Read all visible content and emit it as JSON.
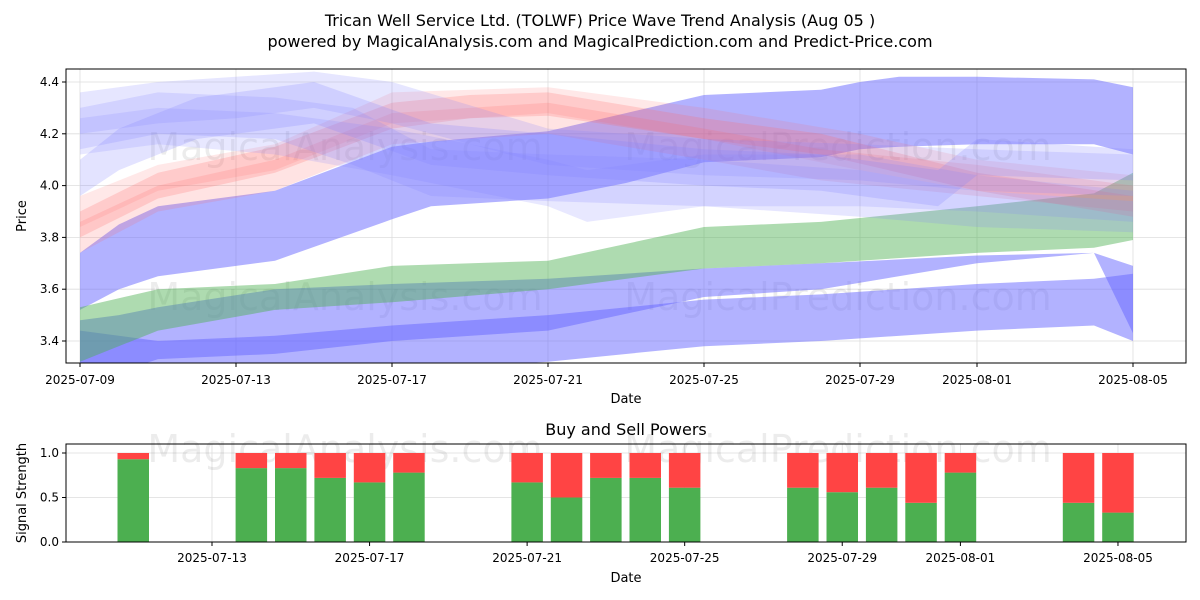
{
  "chart_data": [
    {
      "type": "area",
      "title": "Trican Well Service Ltd. (TOLWF) Price Wave Trend Analysis (Aug 05 )",
      "subtitle": "powered by MagicalAnalysis.com and MagicalPrediction.com and Predict-Price.com",
      "xlabel": "Date",
      "ylabel": "Price",
      "xlim": [
        "2025-07-09",
        "2025-08-06"
      ],
      "ylim": [
        3.32,
        4.46
      ],
      "x_ticks": [
        "2025-07-09",
        "2025-07-13",
        "2025-07-17",
        "2025-07-21",
        "2025-07-25",
        "2025-07-29",
        "2025-08-01",
        "2025-08-05"
      ],
      "y_ticks": [
        3.4,
        3.6,
        3.8,
        4.0,
        4.2,
        4.4
      ],
      "grid": true,
      "watermarks": [
        "MagicalAnalysis.com",
        "MagicalPrediction.com"
      ],
      "series": [
        {
          "name": "blue band upper",
          "color": "#6666ff",
          "opacity": 0.5,
          "x": [
            "2025-07-09",
            "2025-07-10",
            "2025-07-11",
            "2025-07-14",
            "2025-07-17",
            "2025-07-18",
            "2025-07-21",
            "2025-07-23",
            "2025-07-25",
            "2025-07-28",
            "2025-07-29",
            "2025-07-30",
            "2025-08-01",
            "2025-08-04",
            "2025-08-05"
          ],
          "upper": [
            3.74,
            3.85,
            3.92,
            3.98,
            4.15,
            4.17,
            4.21,
            4.28,
            4.35,
            4.37,
            4.4,
            4.42,
            4.42,
            4.41,
            4.38
          ],
          "lower": [
            3.52,
            3.6,
            3.65,
            3.71,
            3.87,
            3.92,
            3.95,
            4.01,
            4.09,
            4.11,
            4.14,
            4.15,
            4.16,
            4.16,
            4.12
          ]
        },
        {
          "name": "blue band middle",
          "color": "#6666ff",
          "opacity": 0.5,
          "x": [
            "2025-07-09",
            "2025-07-10",
            "2025-07-11",
            "2025-07-14",
            "2025-07-17",
            "2025-07-21",
            "2025-07-25",
            "2025-07-28",
            "2025-08-01",
            "2025-08-04",
            "2025-08-05"
          ],
          "upper": [
            3.48,
            3.5,
            3.53,
            3.6,
            3.62,
            3.64,
            3.68,
            3.7,
            3.73,
            3.74,
            3.69
          ],
          "lower": [
            3.2,
            3.28,
            3.33,
            3.35,
            3.4,
            3.44,
            3.57,
            3.6,
            3.7,
            3.74,
            3.43
          ]
        },
        {
          "name": "blue band lower",
          "color": "#6666ff",
          "opacity": 0.5,
          "x": [
            "2025-07-09",
            "2025-07-11",
            "2025-07-14",
            "2025-07-17",
            "2025-07-21",
            "2025-07-25",
            "2025-07-28",
            "2025-08-01",
            "2025-08-04",
            "2025-08-05"
          ],
          "upper": [
            3.44,
            3.4,
            3.42,
            3.46,
            3.5,
            3.56,
            3.58,
            3.62,
            3.64,
            3.66
          ],
          "lower": [
            3.1,
            3.18,
            3.22,
            3.28,
            3.32,
            3.38,
            3.4,
            3.44,
            3.46,
            3.4
          ]
        },
        {
          "name": "green band",
          "color": "#4caf50",
          "opacity": 0.45,
          "x": [
            "2025-07-09",
            "2025-07-11",
            "2025-07-14",
            "2025-07-17",
            "2025-07-21",
            "2025-07-25",
            "2025-07-28",
            "2025-08-01",
            "2025-08-04",
            "2025-08-05"
          ],
          "upper": [
            3.53,
            3.6,
            3.62,
            3.69,
            3.71,
            3.84,
            3.86,
            3.92,
            3.97,
            4.05
          ],
          "lower": [
            3.32,
            3.44,
            3.52,
            3.55,
            3.6,
            3.68,
            3.7,
            3.74,
            3.76,
            3.79
          ]
        },
        {
          "name": "red band 1",
          "color": "#ff6666",
          "opacity": 0.22,
          "x": [
            "2025-07-09",
            "2025-07-11",
            "2025-07-14",
            "2025-07-17",
            "2025-07-19",
            "2025-07-21",
            "2025-07-25",
            "2025-07-28",
            "2025-08-01",
            "2025-08-05"
          ],
          "upper": [
            3.9,
            4.05,
            4.15,
            4.32,
            4.35,
            4.36,
            4.26,
            4.2,
            4.05,
            3.96
          ],
          "lower": [
            3.8,
            3.95,
            4.05,
            4.22,
            4.26,
            4.27,
            4.18,
            4.12,
            3.98,
            3.88
          ]
        },
        {
          "name": "red band 2",
          "color": "#ff6666",
          "opacity": 0.18,
          "x": [
            "2025-07-09",
            "2025-07-11",
            "2025-07-14",
            "2025-07-17",
            "2025-07-21",
            "2025-07-25",
            "2025-07-28",
            "2025-08-01",
            "2025-08-05"
          ],
          "upper": [
            3.86,
            4.0,
            4.1,
            4.28,
            4.32,
            4.22,
            4.14,
            4.08,
            4.0
          ],
          "lower": [
            3.74,
            3.9,
            3.98,
            4.16,
            4.2,
            4.1,
            4.02,
            3.96,
            3.9
          ]
        },
        {
          "name": "red band 3",
          "color": "#ff6666",
          "opacity": 0.15,
          "x": [
            "2025-07-09",
            "2025-07-11",
            "2025-07-14",
            "2025-07-17",
            "2025-07-21",
            "2025-07-25",
            "2025-07-29",
            "2025-08-01",
            "2025-08-05"
          ],
          "upper": [
            3.96,
            4.08,
            4.16,
            4.36,
            4.38,
            4.3,
            4.2,
            4.1,
            4.04
          ],
          "lower": [
            3.84,
            3.98,
            4.06,
            4.24,
            4.28,
            4.18,
            4.06,
            3.98,
            3.94
          ]
        },
        {
          "name": "light blue band 1",
          "color": "#8080ff",
          "opacity": 0.2,
          "x": [
            "2025-07-09",
            "2025-07-11",
            "2025-07-13",
            "2025-07-15",
            "2025-07-17",
            "2025-07-21",
            "2025-07-25",
            "2025-07-29",
            "2025-08-01",
            "2025-08-05"
          ],
          "upper": [
            4.36,
            4.4,
            4.42,
            4.44,
            4.4,
            4.22,
            4.18,
            4.16,
            4.14,
            4.12
          ],
          "lower": [
            4.2,
            4.24,
            4.26,
            4.3,
            4.24,
            4.08,
            4.04,
            4.02,
            3.98,
            3.96
          ]
        },
        {
          "name": "light blue band 2",
          "color": "#8080ff",
          "opacity": 0.2,
          "x": [
            "2025-07-09",
            "2025-07-11",
            "2025-07-14",
            "2025-07-16",
            "2025-07-18",
            "2025-07-21",
            "2025-07-25",
            "2025-07-29",
            "2025-08-01",
            "2025-08-05"
          ],
          "upper": [
            4.3,
            4.36,
            4.34,
            4.3,
            4.14,
            4.12,
            4.1,
            4.06,
            3.98,
            3.94
          ],
          "lower": [
            4.14,
            4.2,
            4.18,
            4.08,
            3.96,
            3.94,
            3.92,
            3.88,
            3.84,
            3.82
          ]
        },
        {
          "name": "light blue band 3",
          "color": "#8080ff",
          "opacity": 0.22,
          "x": [
            "2025-07-09",
            "2025-07-10",
            "2025-07-12",
            "2025-07-15",
            "2025-07-18",
            "2025-07-21",
            "2025-07-25",
            "2025-07-28",
            "2025-07-31",
            "2025-08-01",
            "2025-08-05"
          ],
          "upper": [
            4.1,
            4.22,
            4.34,
            4.4,
            4.24,
            4.2,
            4.14,
            4.12,
            4.06,
            4.18,
            4.14
          ],
          "lower": [
            3.96,
            4.06,
            4.18,
            4.24,
            4.08,
            4.04,
            4.0,
            3.98,
            3.92,
            4.04,
            4.02
          ]
        },
        {
          "name": "light blue band 4",
          "color": "#8080ff",
          "opacity": 0.18,
          "x": [
            "2025-07-09",
            "2025-07-11",
            "2025-07-14",
            "2025-07-17",
            "2025-07-21",
            "2025-07-22",
            "2025-07-25",
            "2025-07-29",
            "2025-08-01",
            "2025-08-05"
          ],
          "upper": [
            4.26,
            4.3,
            4.28,
            4.22,
            4.1,
            4.06,
            4.12,
            4.12,
            4.04,
            3.98
          ],
          "lower": [
            4.12,
            4.16,
            4.12,
            4.04,
            3.92,
            3.86,
            3.92,
            3.92,
            3.9,
            3.86
          ]
        }
      ]
    },
    {
      "type": "bar",
      "title": "Buy and Sell Powers",
      "xlabel": "Date",
      "ylabel": "Signal Strength",
      "ylim": [
        0,
        1.05
      ],
      "x_ticks": [
        "2025-07-13",
        "2025-07-17",
        "2025-07-21",
        "2025-07-25",
        "2025-07-29",
        "2025-08-01",
        "2025-08-05"
      ],
      "y_ticks": [
        "0.0",
        "0.5",
        "1.0"
      ],
      "grid": true,
      "watermarks": [
        "MagicalAnalysis.com",
        "MagicalPrediction.com"
      ],
      "buy_color": "#4caf50",
      "sell_color": "#ff4444",
      "dates": [
        "2025-07-11",
        "2025-07-14",
        "2025-07-15",
        "2025-07-16",
        "2025-07-17",
        "2025-07-18",
        "2025-07-21",
        "2025-07-22",
        "2025-07-23",
        "2025-07-24",
        "2025-07-25",
        "2025-07-28",
        "2025-07-29",
        "2025-07-30",
        "2025-07-31",
        "2025-08-01",
        "2025-08-04",
        "2025-08-05"
      ],
      "buy": [
        0.93,
        0.83,
        0.83,
        0.72,
        0.67,
        0.78,
        0.67,
        0.5,
        0.72,
        0.72,
        0.61,
        0.61,
        0.56,
        0.61,
        0.44,
        0.78,
        0.44,
        0.33
      ],
      "sell": [
        0.07,
        0.17,
        0.17,
        0.28,
        0.33,
        0.22,
        0.33,
        0.5,
        0.28,
        0.28,
        0.39,
        0.39,
        0.44,
        0.39,
        0.56,
        0.22,
        0.56,
        0.67
      ]
    }
  ]
}
